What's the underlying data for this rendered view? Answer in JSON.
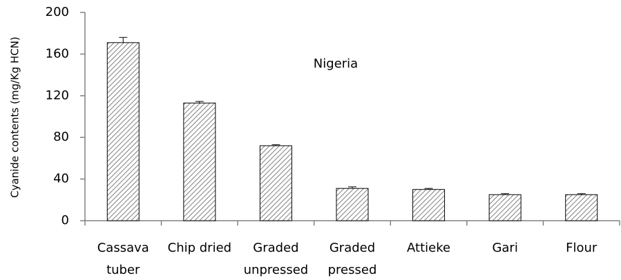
{
  "chart_data": {
    "type": "bar",
    "ylabel": "Cyanide contents  (mg/Kg HCN)",
    "annotation": "Nigeria",
    "categories": [
      [
        "Cassava",
        "tuber"
      ],
      [
        "Chip dried"
      ],
      [
        "Graded",
        "unpressed"
      ],
      [
        "Graded",
        "pressed"
      ],
      [
        "Attieke"
      ],
      [
        "Gari"
      ],
      [
        "Flour"
      ]
    ],
    "values": [
      171,
      113,
      72,
      31,
      30,
      25,
      25
    ],
    "errors": [
      5,
      1.5,
      1,
      1.5,
      1,
      1,
      1
    ],
    "color": "#7f7f7f",
    "ylim": [
      0,
      200
    ],
    "yticks": [
      0,
      40,
      80,
      120,
      160,
      200
    ],
    "grid": false
  }
}
